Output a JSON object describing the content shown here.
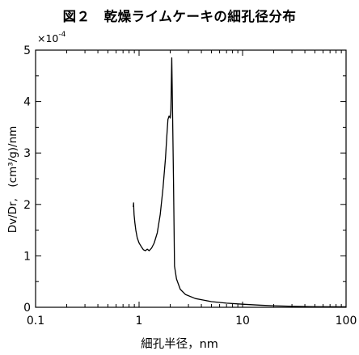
{
  "chart_data": {
    "type": "line",
    "title": "図２　乾燥ライムケーキの細孔径分布",
    "xlabel": "細孔半径，nm",
    "ylabel": "Dv/Dr,　(cm³/g)/nm",
    "y_multiplier": "×10",
    "y_multiplier_exp": "-4",
    "xscale": "log",
    "xlim": [
      0.1,
      100
    ],
    "ylim": [
      0,
      5
    ],
    "x_ticks": [
      {
        "value": 0.1,
        "label": "0.1"
      },
      {
        "value": 1,
        "label": "1"
      },
      {
        "value": 10,
        "label": "10"
      },
      {
        "value": 100,
        "label": "100"
      }
    ],
    "y_ticks": [
      {
        "value": 0,
        "label": "0"
      },
      {
        "value": 1,
        "label": "1"
      },
      {
        "value": 2,
        "label": "2"
      },
      {
        "value": 3,
        "label": "3"
      },
      {
        "value": 4,
        "label": "4"
      },
      {
        "value": 5,
        "label": "5"
      }
    ],
    "grid": false,
    "series": [
      {
        "points": [
          [
            0.88,
            1.95
          ],
          [
            0.885,
            2.03
          ],
          [
            0.89,
            1.9
          ],
          [
            0.895,
            1.8
          ],
          [
            0.91,
            1.65
          ],
          [
            0.93,
            1.5
          ],
          [
            0.96,
            1.35
          ],
          [
            1.0,
            1.25
          ],
          [
            1.05,
            1.18
          ],
          [
            1.1,
            1.12
          ],
          [
            1.15,
            1.1
          ],
          [
            1.2,
            1.13
          ],
          [
            1.25,
            1.1
          ],
          [
            1.32,
            1.15
          ],
          [
            1.4,
            1.25
          ],
          [
            1.5,
            1.45
          ],
          [
            1.6,
            1.8
          ],
          [
            1.7,
            2.3
          ],
          [
            1.8,
            2.9
          ],
          [
            1.85,
            3.3
          ],
          [
            1.9,
            3.65
          ],
          [
            1.95,
            3.72
          ],
          [
            2.0,
            3.68
          ],
          [
            2.03,
            3.85
          ],
          [
            2.07,
            4.85
          ],
          [
            2.1,
            4.0
          ],
          [
            2.15,
            2.5
          ],
          [
            2.2,
            0.8
          ],
          [
            2.3,
            0.55
          ],
          [
            2.5,
            0.35
          ],
          [
            2.8,
            0.25
          ],
          [
            3.5,
            0.17
          ],
          [
            5,
            0.11
          ],
          [
            7,
            0.08
          ],
          [
            10,
            0.06
          ],
          [
            15,
            0.04
          ],
          [
            20,
            0.03
          ],
          [
            30,
            0.02
          ],
          [
            50,
            0.012
          ],
          [
            100,
            0.01
          ]
        ]
      }
    ]
  }
}
